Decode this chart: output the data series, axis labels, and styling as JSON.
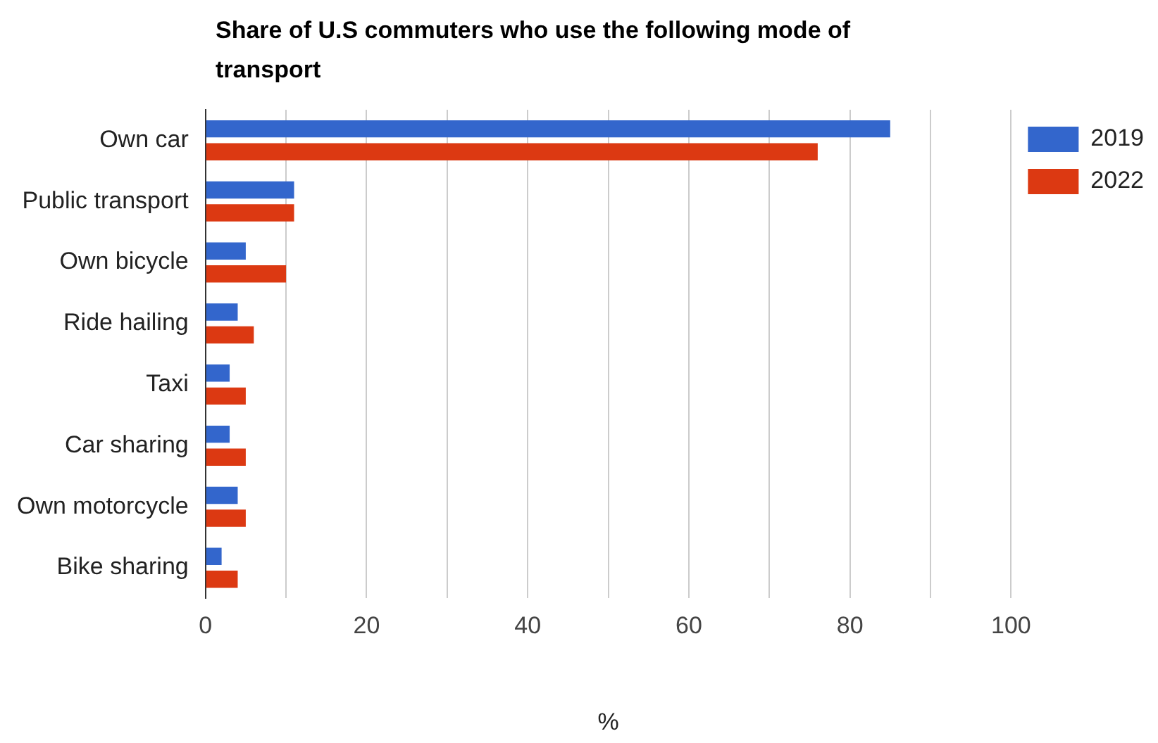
{
  "chart_data": {
    "type": "bar",
    "orientation": "horizontal",
    "title": "Share of U.S commuters who use the following mode of transport",
    "xlabel": "%",
    "categories": [
      "Own car",
      "Public transport",
      "Own bicycle",
      "Ride hailing",
      "Taxi",
      "Car sharing",
      "Own motorcycle",
      "Bike sharing"
    ],
    "series": [
      {
        "name": "2019",
        "color": "#3366cc",
        "values": [
          85,
          11,
          5,
          4,
          3,
          3,
          4,
          2
        ]
      },
      {
        "name": "2022",
        "color": "#dc3912",
        "values": [
          76,
          11,
          10,
          6,
          5,
          5,
          5,
          4
        ]
      }
    ],
    "xlim": [
      0,
      100
    ],
    "xticks": [
      0,
      {
        "value": 10,
        "label": null
      },
      20,
      {
        "value": 30,
        "label": null
      },
      40,
      {
        "value": 50,
        "label": null
      },
      60,
      {
        "value": 70,
        "label": null
      },
      80,
      {
        "value": 90,
        "label": null
      },
      100
    ],
    "grid": "x",
    "legend": "top right"
  }
}
